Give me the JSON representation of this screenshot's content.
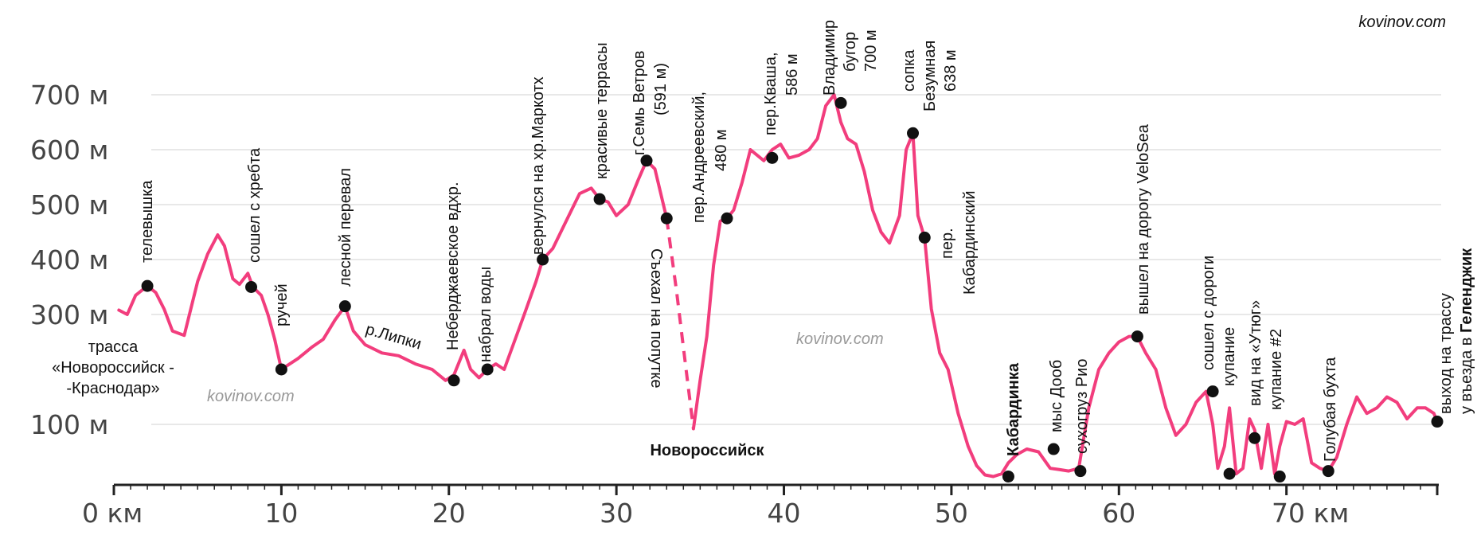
{
  "watermark": "kovinov.com",
  "chart_data": {
    "type": "line",
    "title": "",
    "xlabel": "",
    "ylabel": "",
    "xlim": [
      0,
      79
    ],
    "ylim": [
      0,
      780
    ],
    "grid": true,
    "y_ticks": [
      {
        "value": 100,
        "label": "100 м"
      },
      {
        "value": 300,
        "label": "300 м"
      },
      {
        "value": 400,
        "label": "400 м"
      },
      {
        "value": 500,
        "label": "500 м"
      },
      {
        "value": 600,
        "label": "600 м"
      },
      {
        "value": 700,
        "label": "700 м"
      }
    ],
    "x_ticks": [
      {
        "value": 0,
        "label": "0 км"
      },
      {
        "value": 10,
        "label": "10"
      },
      {
        "value": 20,
        "label": "20"
      },
      {
        "value": 30,
        "label": "30"
      },
      {
        "value": 40,
        "label": "40"
      },
      {
        "value": 50,
        "label": "50"
      },
      {
        "value": 60,
        "label": "60"
      },
      {
        "value": 70,
        "label": "70 км"
      }
    ],
    "series": [
      {
        "color": "#f23d7d",
        "x": [
          0.3,
          0.8,
          1.3,
          2.0,
          2.5,
          3.0,
          3.5,
          4.2,
          5.0,
          5.6,
          6.2,
          6.6,
          7.1,
          7.5,
          8.0,
          8.3,
          8.8,
          9.2,
          9.6,
          10.0,
          10.5,
          11.0,
          11.8,
          12.5,
          13.2,
          13.8,
          14.3,
          15.0,
          16.0,
          17.0,
          18.0,
          19.0,
          19.8,
          20.3,
          20.9,
          21.3,
          21.8,
          22.3,
          22.8,
          23.3,
          23.9,
          24.5,
          25.2,
          25.6,
          26.2,
          27.0,
          27.8,
          28.5,
          29.0,
          29.5,
          30.0,
          30.7,
          31.3,
          31.8,
          32.3,
          33.0
        ],
        "y": [
          308,
          300,
          335,
          352,
          340,
          310,
          270,
          262,
          360,
          410,
          445,
          425,
          365,
          355,
          375,
          350,
          335,
          300,
          255,
          200,
          210,
          220,
          240,
          255,
          290,
          315,
          270,
          245,
          230,
          225,
          210,
          200,
          180,
          190,
          235,
          200,
          185,
          200,
          210,
          200,
          250,
          300,
          360,
          400,
          420,
          470,
          520,
          530,
          510,
          505,
          480,
          500,
          545,
          580,
          565,
          475
        ]
      },
      {
        "color": "#f23d7d",
        "dashed": true,
        "x": [
          33.0,
          33.6,
          34.2,
          34.6
        ],
        "y": [
          475,
          340,
          190,
          92
        ]
      },
      {
        "color": "#f23d7d",
        "x": [
          34.6,
          35.0,
          35.4,
          35.8,
          36.2,
          36.6,
          37.0,
          37.5,
          38.0,
          38.4,
          38.8,
          39.3,
          39.8,
          40.3,
          40.9,
          41.5,
          42.0,
          42.5,
          43.0,
          43.4,
          43.8,
          44.3,
          44.8,
          45.3,
          45.8,
          46.3,
          46.9,
          47.3,
          47.7,
          48.0,
          48.4,
          48.8,
          49.3,
          49.8,
          50.4,
          51.0,
          51.5,
          52.0,
          52.5,
          53.0,
          53.4,
          53.9,
          54.5,
          55.2,
          55.9,
          56.4,
          57.0,
          57.6,
          58.2,
          58.8,
          59.4,
          60.0,
          60.6,
          61.1,
          61.6,
          62.2,
          62.8,
          63.4,
          64.0,
          64.6,
          65.2,
          65.6,
          65.9,
          66.3,
          66.6,
          67.0,
          67.4,
          67.8,
          68.1,
          68.5,
          68.9,
          69.3,
          69.6,
          70.0,
          70.5,
          71.0,
          71.5,
          72.0,
          72.5,
          73.0,
          73.6,
          74.2,
          74.8,
          75.4,
          76.0,
          76.6,
          77.2,
          77.8,
          78.3,
          78.8,
          79.0
        ],
        "y": [
          92,
          180,
          260,
          390,
          470,
          475,
          490,
          540,
          600,
          590,
          580,
          600,
          610,
          585,
          590,
          600,
          620,
          680,
          700,
          650,
          620,
          610,
          560,
          490,
          450,
          430,
          480,
          600,
          630,
          480,
          440,
          310,
          230,
          200,
          120,
          60,
          25,
          8,
          5,
          10,
          30,
          45,
          55,
          50,
          20,
          18,
          15,
          20,
          130,
          200,
          230,
          250,
          260,
          260,
          230,
          200,
          130,
          80,
          100,
          140,
          160,
          100,
          20,
          60,
          130,
          10,
          20,
          110,
          90,
          20,
          100,
          10,
          60,
          105,
          100,
          110,
          30,
          20,
          15,
          40,
          100,
          150,
          120,
          130,
          150,
          140,
          110,
          130,
          130,
          120,
          105
        ]
      }
    ],
    "markers": [
      {
        "x": 2.0,
        "y": 352
      },
      {
        "x": 8.2,
        "y": 350
      },
      {
        "x": 10.0,
        "y": 200
      },
      {
        "x": 13.8,
        "y": 315
      },
      {
        "x": 20.3,
        "y": 180
      },
      {
        "x": 22.3,
        "y": 200
      },
      {
        "x": 25.6,
        "y": 400
      },
      {
        "x": 29.0,
        "y": 510
      },
      {
        "x": 31.8,
        "y": 580
      },
      {
        "x": 33.0,
        "y": 475
      },
      {
        "x": 36.6,
        "y": 475
      },
      {
        "x": 39.3,
        "y": 585
      },
      {
        "x": 43.4,
        "y": 685
      },
      {
        "x": 47.7,
        "y": 630
      },
      {
        "x": 48.4,
        "y": 440
      },
      {
        "x": 53.4,
        "y": 5
      },
      {
        "x": 56.1,
        "y": 55
      },
      {
        "x": 57.7,
        "y": 15
      },
      {
        "x": 61.1,
        "y": 260
      },
      {
        "x": 65.6,
        "y": 160
      },
      {
        "x": 66.6,
        "y": 10
      },
      {
        "x": 68.1,
        "y": 75
      },
      {
        "x": 69.6,
        "y": 5
      },
      {
        "x": 72.5,
        "y": 15
      },
      {
        "x": 79.0,
        "y": 105
      }
    ],
    "annotations": [
      {
        "text": "телевышка",
        "bold": false
      },
      {
        "text": "сошел с хребта",
        "bold": false
      },
      {
        "text": "ручей",
        "bold": false
      },
      {
        "text": "лесной перевал",
        "bold": false
      },
      {
        "text": "р.Липки",
        "bold": false
      },
      {
        "text": "Неберджаевское вдхр.",
        "bold": false
      },
      {
        "text": "набрал воды",
        "bold": false
      },
      {
        "text": "вернулся на хр.Маркотх",
        "bold": false
      },
      {
        "text": "красивые террасы",
        "bold": false
      },
      {
        "text": "г.Семь Ветров",
        "bold": false
      },
      {
        "text": "(591 м)",
        "bold": false
      },
      {
        "text": "Съехал на попутке",
        "bold": false
      },
      {
        "text": "пер.Андреевский,",
        "bold": false
      },
      {
        "text": "480 м",
        "bold": false
      },
      {
        "text": "пер.Кваша,",
        "bold": false
      },
      {
        "text": "586 м",
        "bold": false
      },
      {
        "text": "Владимир",
        "bold": false
      },
      {
        "text": "бугор",
        "bold": false
      },
      {
        "text": "700 м",
        "bold": false
      },
      {
        "text": "сопка",
        "bold": false
      },
      {
        "text": "Безумная",
        "bold": false
      },
      {
        "text": "638 м",
        "bold": false
      },
      {
        "text": "пер.",
        "bold": false
      },
      {
        "text": "Кабардинский",
        "bold": false
      },
      {
        "text": "Кабардинка",
        "bold": true
      },
      {
        "text": "мыс Дооб",
        "bold": false
      },
      {
        "text": "сухогруз Рио",
        "bold": false
      },
      {
        "text": "вышел на дорогу VeloSea",
        "bold": false
      },
      {
        "text": "сошел с дороги",
        "bold": false
      },
      {
        "text": "купание",
        "bold": false
      },
      {
        "text": "вид на «Утюг»",
        "bold": false
      },
      {
        "text": "купание #2",
        "bold": false
      },
      {
        "text": "Голубая бухта",
        "bold": false
      },
      {
        "text": "выход на трассу",
        "bold": false
      },
      {
        "text": "у въезда в",
        "bold": false
      },
      {
        "text": "Геленджик",
        "bold": true
      },
      {
        "text": "трасса",
        "bold": false
      },
      {
        "text": "«Новороссийск -",
        "bold": false
      },
      {
        "text": "-Краснодар»",
        "bold": false
      },
      {
        "text": "Новороссийск",
        "bold": true
      }
    ]
  }
}
